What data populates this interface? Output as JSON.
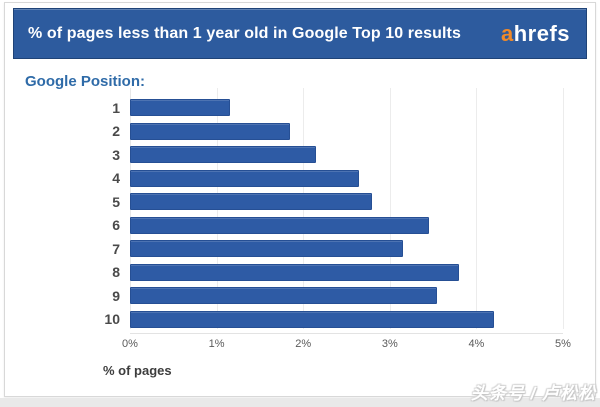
{
  "header": {
    "title": "% of pages less than 1 year old in Google Top 10 results",
    "logo_prefix": "a",
    "logo_rest": "hrefs"
  },
  "chart_data": {
    "type": "bar",
    "orientation": "horizontal",
    "title": "% of pages less than 1 year old in Google Top 10 results",
    "categories": [
      "1",
      "2",
      "3",
      "4",
      "5",
      "6",
      "7",
      "8",
      "9",
      "10"
    ],
    "values": [
      1.15,
      1.85,
      2.15,
      2.65,
      2.8,
      3.45,
      3.15,
      3.8,
      3.55,
      4.2
    ],
    "unit": "%",
    "xlabel": "% of pages",
    "ylabel": "Google Position:",
    "xlim": [
      0,
      5
    ],
    "x_tick_labels": [
      "0%",
      "1%",
      "2%",
      "3%",
      "4%",
      "5%"
    ],
    "grid": true,
    "legend": false,
    "bar_color": "#2e5ba5"
  },
  "watermark": {
    "text": "头条号 / 卢松松"
  },
  "colors": {
    "header_bg": "#2d5b9e",
    "header_border": "#1f4377",
    "logo_accent": "#f18a29",
    "bar": "#2e5ba5",
    "bar_border": "#264f94",
    "gridline": "#ececec",
    "card_border": "#d8d8d8",
    "bottom_strip": "#e9e9e9",
    "group_label_text": "#2f6ba8"
  }
}
